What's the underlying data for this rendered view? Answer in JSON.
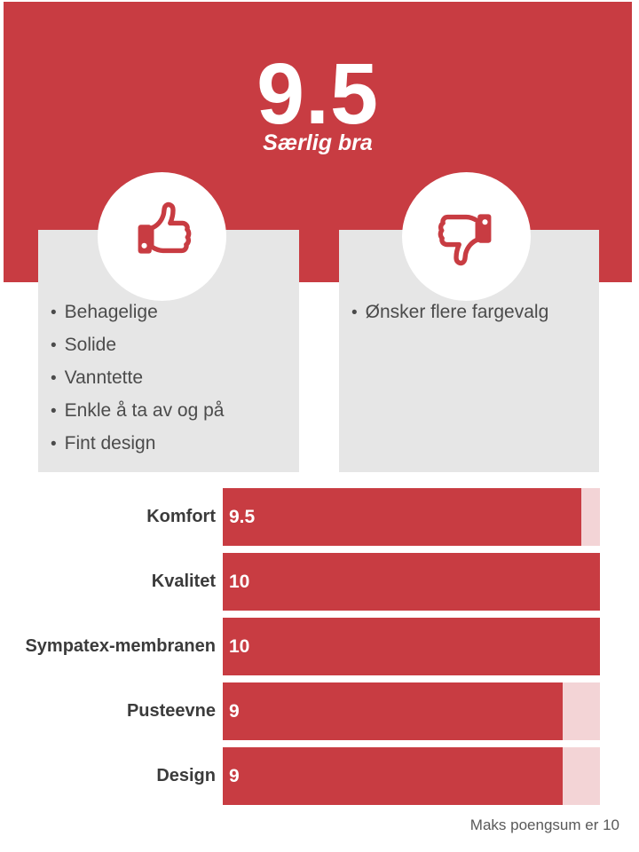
{
  "score": {
    "value": "9.5",
    "label": "Særlig bra"
  },
  "pros": {
    "icon": "thumbs-up",
    "bullet": "•",
    "items": [
      "Behagelige",
      "Solide",
      "Vanntette",
      "Enkle å ta av og på",
      "Fint design"
    ]
  },
  "cons": {
    "icon": "thumbs-down",
    "bullet": "•",
    "items": [
      "Ønsker flere fargevalg"
    ]
  },
  "chart_data": {
    "type": "bar",
    "orientation": "horizontal",
    "categories": [
      "Komfort",
      "Kvalitet",
      "Sympatex-membranen",
      "Pusteevne",
      "Design"
    ],
    "values": [
      9.5,
      10,
      10,
      9,
      9
    ],
    "value_labels": [
      "9.5",
      "10",
      "10",
      "9",
      "9"
    ],
    "xlim": [
      0,
      10
    ],
    "grid": false,
    "footnote": "Maks poengsum er 10"
  },
  "colors": {
    "accent_red": "#c83c42",
    "track_pink": "#f3d4d6",
    "box_gray": "#e6e6e6",
    "label_dark": "#3b3b3b",
    "list_text": "#4b4b4b",
    "footnote_gray": "#595959",
    "score_text": "#ffffff"
  }
}
